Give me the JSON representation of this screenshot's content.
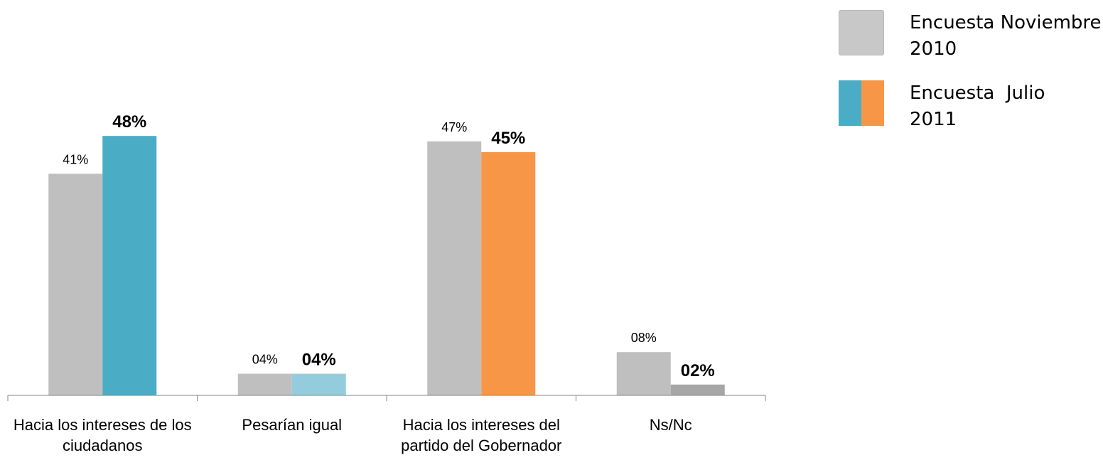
{
  "chart_data": {
    "type": "bar",
    "categories": [
      "Hacia los intereses de los ciudadanos",
      "Pesarían igual",
      "Hacia los intereses del partido del Gobernador",
      "Ns/Nc"
    ],
    "series": [
      {
        "name": "Encuesta Noviembre 2010",
        "values": [
          41,
          4,
          47,
          8
        ],
        "labels": [
          "41%",
          "04%",
          "47%",
          "08%"
        ],
        "colors": [
          "#bfbfbf",
          "#bfbfbf",
          "#bfbfbf",
          "#bfbfbf"
        ]
      },
      {
        "name": "Encuesta Julio 2011",
        "values": [
          48,
          4,
          45,
          2
        ],
        "labels": [
          "48%",
          "04%",
          "45%",
          "02%"
        ],
        "colors": [
          "#4bacc6",
          "#93cddd",
          "#f79646",
          "#a6a6a6"
        ]
      }
    ],
    "ylim": [
      0,
      50
    ],
    "grid": false,
    "legend_position": "top-right"
  },
  "legend": {
    "items": [
      {
        "line1": "Encuesta Noviembre",
        "line2": "2010",
        "colors": [
          "#c8c8c8"
        ]
      },
      {
        "line1": "Encuesta  Julio",
        "line2": "2011",
        "colors": [
          "#4bacc6",
          "#f79646"
        ]
      }
    ]
  }
}
